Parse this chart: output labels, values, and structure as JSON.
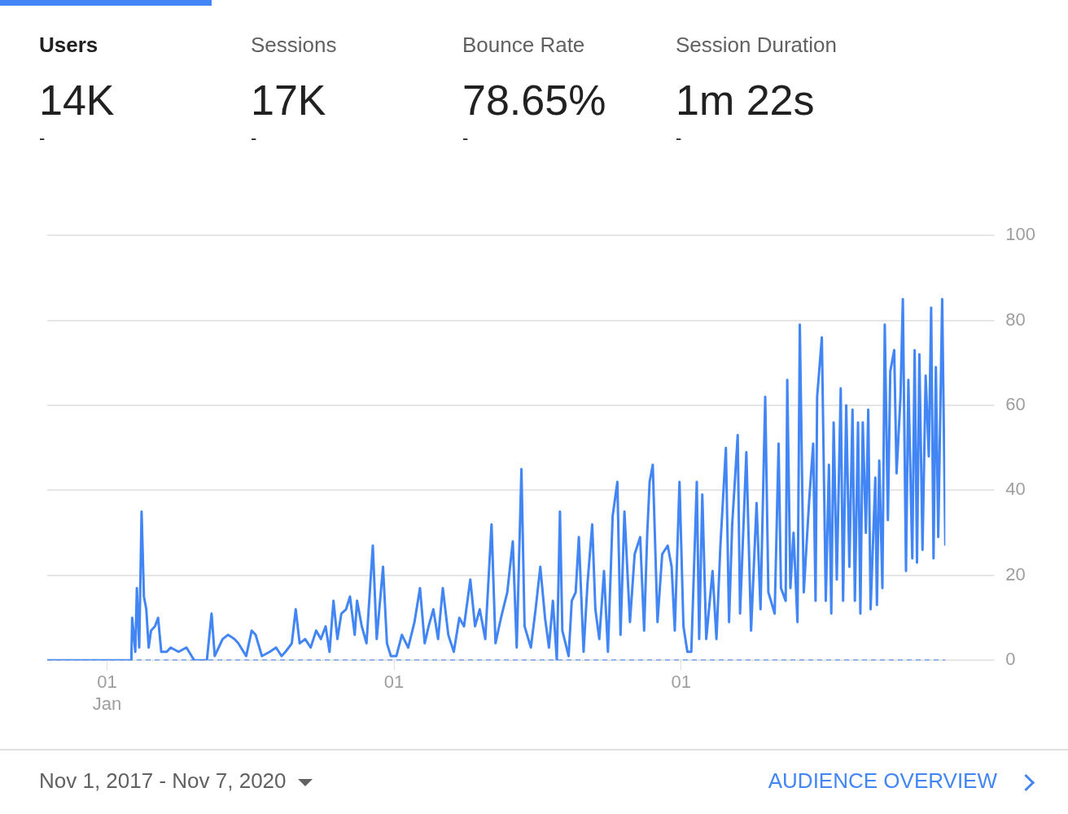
{
  "chart_data": [
    {
      "type": "other",
      "title": "Users",
      "annotations": [
        "14K",
        "-"
      ]
    },
    {
      "type": "other",
      "title": "Sessions",
      "annotations": [
        "17K",
        "-"
      ]
    },
    {
      "type": "other",
      "title": "Bounce Rate",
      "annotations": [
        "78.65%",
        "-"
      ]
    },
    {
      "type": "other",
      "title": "Session Duration",
      "annotations": [
        "1m 22s",
        "-"
      ]
    },
    {
      "type": "line",
      "xlim": [
        "2017-10-17",
        "2020-12-02"
      ],
      "ylim": [
        0,
        100
      ],
      "yticks": [
        0,
        20,
        40,
        60,
        80,
        100
      ],
      "xticks": [
        {
          "value": "2018-01-01",
          "label": "01\nJan"
        },
        {
          "value": "2019-01-01",
          "label": "01"
        },
        {
          "value": "2020-01-01",
          "label": "01"
        }
      ],
      "grid": "y",
      "legend": false,
      "marker": "none",
      "annotations": [
        "Nov 1, 2017 - Nov 7, 2020",
        "AUDIENCE OVERVIEW"
      ],
      "series": [
        {
          "color": "#4285f4",
          "line_style": "dashed",
          "x": [
            "2017-10-17",
            "2020-12-02"
          ],
          "values": [
            0,
            0
          ]
        },
        {
          "color": "#4285f4",
          "line_style": "solid",
          "x": [
            "2017-10-17",
            "2018-02-01",
            "2018-02-02",
            "2018-02-06",
            "2018-02-08",
            "2018-02-11",
            "2018-02-14",
            "2018-02-17",
            "2018-02-20",
            "2018-02-23",
            "2018-02-26",
            "2018-03-03",
            "2018-03-07",
            "2018-03-11",
            "2018-03-18",
            "2018-03-23",
            "2018-04-02",
            "2018-04-12",
            "2018-04-22",
            "2018-05-08",
            "2018-05-14",
            "2018-05-18",
            "2018-05-28",
            "2018-06-04",
            "2018-06-12",
            "2018-06-17",
            "2018-06-27",
            "2018-07-04",
            "2018-07-09",
            "2018-07-17",
            "2018-07-27",
            "2018-08-04",
            "2018-08-11",
            "2018-08-16",
            "2018-08-24",
            "2018-08-29",
            "2018-09-03",
            "2018-09-10",
            "2018-09-17",
            "2018-09-24",
            "2018-09-30",
            "2018-10-06",
            "2018-10-11",
            "2018-10-16",
            "2018-10-21",
            "2018-10-26",
            "2018-11-01",
            "2018-11-06",
            "2018-11-12",
            "2018-11-15",
            "2018-11-21",
            "2018-11-27",
            "2018-12-05",
            "2018-12-10",
            "2018-12-18",
            "2018-12-23",
            "2018-12-28",
            "2019-01-04",
            "2019-01-11",
            "2019-01-19",
            "2019-01-27",
            "2019-02-03",
            "2019-02-09",
            "2019-02-14",
            "2019-02-20",
            "2019-02-26",
            "2019-03-04",
            "2019-03-11",
            "2019-03-18",
            "2019-03-25",
            "2019-03-31",
            "2019-04-08",
            "2019-04-14",
            "2019-04-20",
            "2019-04-27",
            "2019-05-05",
            "2019-05-10",
            "2019-05-17",
            "2019-05-25",
            "2019-06-01",
            "2019-06-06",
            "2019-06-12",
            "2019-06-16",
            "2019-06-24",
            "2019-06-30",
            "2019-07-06",
            "2019-07-12",
            "2019-07-17",
            "2019-07-22",
            "2019-07-27",
            "2019-07-31",
            "2019-08-03",
            "2019-08-11",
            "2019-08-15",
            "2019-08-20",
            "2019-08-24",
            "2019-08-30",
            "2019-09-04",
            "2019-09-10",
            "2019-09-14",
            "2019-09-19",
            "2019-09-25",
            "2019-09-30",
            "2019-10-06",
            "2019-10-12",
            "2019-10-16",
            "2019-10-21",
            "2019-10-25",
            "2019-10-28",
            "2019-11-03",
            "2019-11-10",
            "2019-11-15",
            "2019-11-19",
            "2019-11-22",
            "2019-11-26",
            "2019-12-02",
            "2019-12-08",
            "2019-12-15",
            "2019-12-20",
            "2019-12-24",
            "2019-12-30",
            "2020-01-04",
            "2020-01-09",
            "2020-01-14",
            "2020-01-21",
            "2020-01-24",
            "2020-01-28",
            "2020-02-02",
            "2020-02-10",
            "2020-02-15",
            "2020-02-20",
            "2020-02-27",
            "2020-03-02",
            "2020-03-06",
            "2020-03-13",
            "2020-03-16",
            "2020-03-24",
            "2020-03-30",
            "2020-04-06",
            "2020-04-11",
            "2020-04-17",
            "2020-04-21",
            "2020-04-29",
            "2020-05-04",
            "2020-05-07",
            "2020-05-13",
            "2020-05-15",
            "2020-05-19",
            "2020-05-23",
            "2020-05-28",
            "2020-05-31",
            "2020-06-05",
            "2020-06-12",
            "2020-06-17",
            "2020-06-20",
            "2020-06-22",
            "2020-06-28",
            "2020-07-03",
            "2020-07-07",
            "2020-07-10",
            "2020-07-13",
            "2020-07-17",
            "2020-07-22",
            "2020-07-25",
            "2020-07-29",
            "2020-08-02",
            "2020-08-06",
            "2020-08-09",
            "2020-08-13",
            "2020-08-16",
            "2020-08-19",
            "2020-08-23",
            "2020-08-26",
            "2020-08-29",
            "2020-09-04",
            "2020-09-06",
            "2020-09-09",
            "2020-09-13",
            "2020-09-16",
            "2020-09-20",
            "2020-09-23",
            "2020-09-28",
            "2020-10-01",
            "2020-10-06",
            "2020-10-09",
            "2020-10-13",
            "2020-10-16",
            "2020-10-21",
            "2020-10-24",
            "2020-10-27",
            "2020-10-30",
            "2020-11-03",
            "2020-11-07",
            "2020-11-11",
            "2020-11-14",
            "2020-11-17",
            "2020-11-20",
            "2020-11-23",
            "2020-11-28",
            "2020-12-02"
          ],
          "values": [
            0,
            0,
            10,
            2,
            17,
            3,
            35,
            15,
            12,
            3,
            7,
            8,
            10,
            2,
            2,
            3,
            2,
            3,
            0,
            0,
            11,
            1,
            5,
            6,
            5,
            4,
            1,
            7,
            6,
            1,
            2,
            3,
            1,
            2,
            4,
            12,
            4,
            5,
            3,
            7,
            5,
            8,
            2,
            14,
            5,
            11,
            12,
            15,
            6,
            14,
            8,
            4,
            27,
            5,
            22,
            4,
            1,
            1,
            6,
            3,
            9,
            17,
            4,
            8,
            12,
            5,
            17,
            6,
            2,
            10,
            8,
            19,
            8,
            12,
            5,
            32,
            4,
            10,
            16,
            28,
            3,
            45,
            8,
            3,
            12,
            22,
            10,
            3,
            14,
            0,
            35,
            7,
            1,
            14,
            16,
            29,
            2,
            18,
            32,
            12,
            5,
            21,
            2,
            34,
            42,
            6,
            35,
            20,
            9,
            25,
            29,
            7,
            30,
            42,
            46,
            9,
            25,
            27,
            22,
            7,
            42,
            8,
            2,
            2,
            42,
            5,
            39,
            5,
            21,
            5,
            27,
            50,
            9,
            32,
            53,
            11,
            49,
            7,
            37,
            12,
            62,
            16,
            11,
            51,
            17,
            14,
            66,
            17,
            30,
            9,
            79,
            16,
            38,
            51,
            14,
            62,
            76,
            14,
            46,
            11,
            56,
            19,
            64,
            14,
            60,
            22,
            59,
            14,
            56,
            11,
            56,
            30,
            59,
            12,
            43,
            13,
            47,
            17,
            79,
            33,
            68,
            73,
            44,
            62,
            85,
            21,
            66,
            24,
            73,
            23,
            72,
            26,
            67,
            48,
            83,
            24,
            69,
            29,
            85,
            27
          ]
        }
      ]
    }
  ]
}
